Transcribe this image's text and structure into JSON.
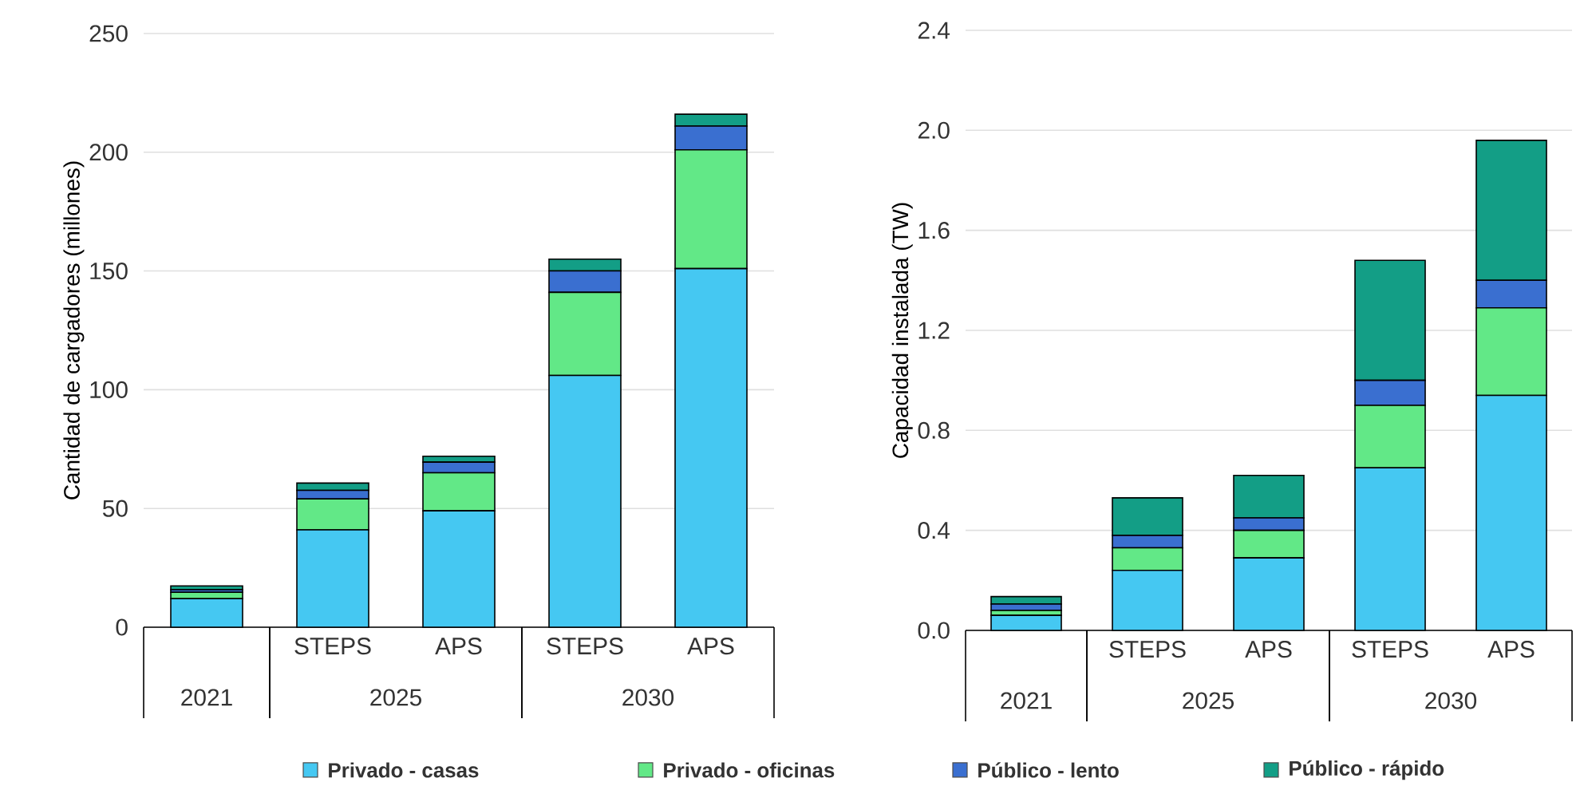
{
  "chart_data": [
    {
      "type": "bar",
      "stacked": true,
      "ylabel": "Cantidad de cargadores (millones)",
      "categories": [
        null,
        "STEPS",
        "APS",
        "STEPS",
        "APS"
      ],
      "annotations": [
        "2021",
        "2025",
        "2030"
      ],
      "ylim": [
        0,
        250
      ],
      "yticks": [
        0,
        50,
        100,
        150,
        200,
        250
      ],
      "grid": "y",
      "legend": "bottom",
      "series": [
        {
          "name": "Privado - casas",
          "color": "#45c8f2",
          "values": [
            12,
            41,
            49,
            106,
            151
          ]
        },
        {
          "name": "Privado - oficinas",
          "color": "#62e887",
          "values": [
            2.7,
            13,
            16,
            35,
            50
          ]
        },
        {
          "name": "Público - lento",
          "color": "#3a6fd0",
          "values": [
            1.1,
            3.6,
            4.5,
            9,
            10
          ]
        },
        {
          "name": "Público - rápido",
          "color": "#139e86",
          "values": [
            1.6,
            3.1,
            2.5,
            5,
            5
          ]
        }
      ]
    },
    {
      "type": "bar",
      "stacked": true,
      "ylabel": "Capacidad instalada (TW)",
      "categories": [
        null,
        "STEPS",
        "APS",
        "STEPS",
        "APS"
      ],
      "annotations": [
        "2021",
        "2025",
        "2030"
      ],
      "ylim": [
        0,
        2.4
      ],
      "yticks": [
        {
          "value": 0,
          "label": "0.0"
        },
        0.4,
        0.8,
        1.2,
        1.6,
        {
          "value": 2,
          "label": "2.0"
        },
        2.4
      ],
      "grid": "y",
      "series": [
        {
          "color": "#45c8f2",
          "values": [
            0.06,
            0.24,
            0.29,
            0.65,
            0.94
          ]
        },
        {
          "color": "#62e887",
          "values": [
            0.02,
            0.09,
            0.11,
            0.25,
            0.35
          ]
        },
        {
          "color": "#3a6fd0",
          "values": [
            0.025,
            0.05,
            0.05,
            0.1,
            0.11
          ]
        },
        {
          "color": "#139e86",
          "values": [
            0.03,
            0.15,
            0.17,
            0.48,
            0.56
          ]
        }
      ]
    }
  ]
}
